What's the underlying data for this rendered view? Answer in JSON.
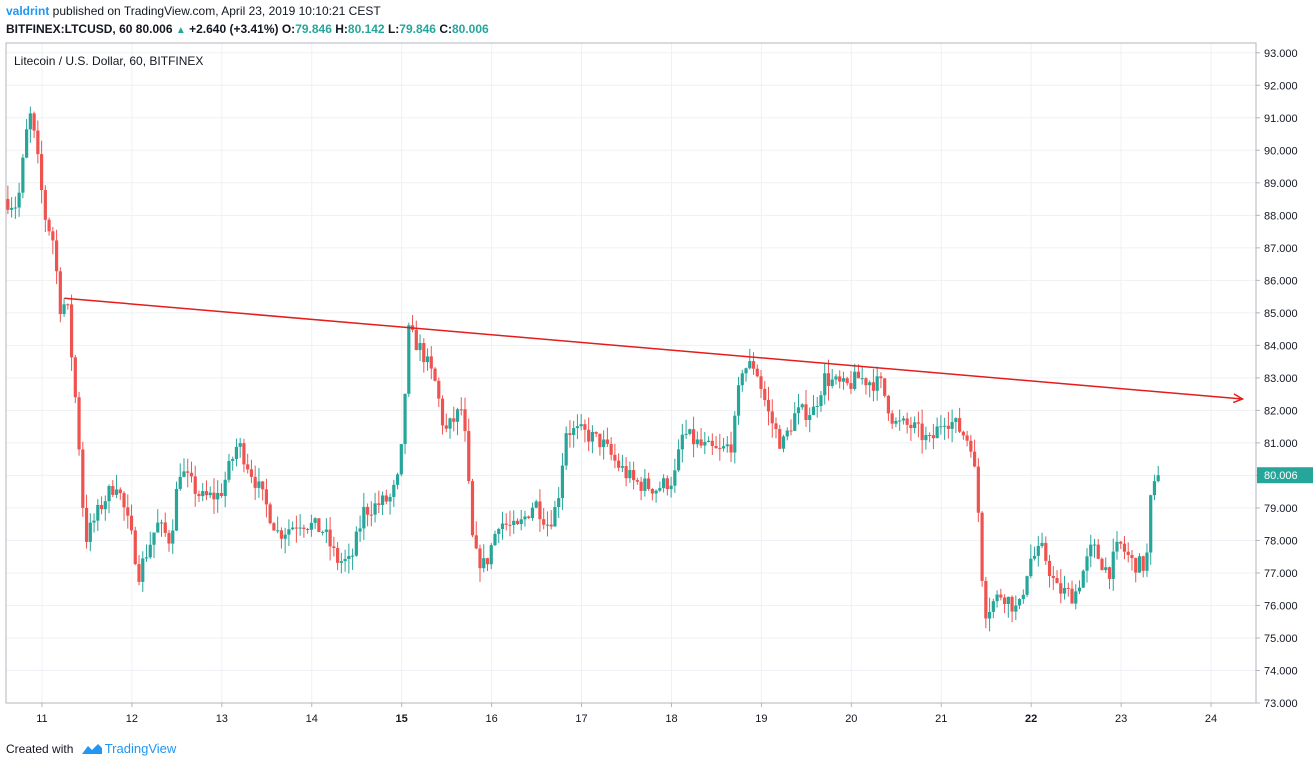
{
  "header": {
    "author": "valdrint",
    "publish_text": " published on TradingView.com, April 23, 2019 10:10:21 CEST",
    "symbol": "BITFINEX:LTCUSD, 60",
    "last": "80.006",
    "change": "+2.640 (+3.41%)",
    "o_label": "O:",
    "o": "79.846",
    "h_label": "H:",
    "h": "80.142",
    "l_label": "L:",
    "l": "79.846",
    "c_label": "C:",
    "c": "80.006"
  },
  "footer": {
    "created_with": "Created with",
    "brand": "TradingView"
  },
  "colors": {
    "up": "#26a69a",
    "down": "#ef5350",
    "trendline": "#e51c1c",
    "grid": "#eef1f5",
    "axis": "#b2b5be",
    "text": "#131722",
    "accent": "#2196f3"
  },
  "chart_data": {
    "type": "candlestick",
    "title": "Litecoin / U.S. Dollar, 60, BITFINEX",
    "x_tick_labels": [
      "11",
      "12",
      "13",
      "14",
      "15",
      "16",
      "17",
      "18",
      "19",
      "20",
      "21",
      "22",
      "23",
      "24"
    ],
    "x_range_days": [
      10.6,
      24.5
    ],
    "y_tick_labels": [
      "73.000",
      "74.000",
      "75.000",
      "76.000",
      "77.000",
      "78.000",
      "79.000",
      "80.000",
      "81.000",
      "82.000",
      "83.000",
      "84.000",
      "85.000",
      "86.000",
      "87.000",
      "88.000",
      "89.000",
      "90.000",
      "91.000",
      "92.000",
      "93.000"
    ],
    "ylim": [
      73,
      93.3
    ],
    "grid": true,
    "last_price": 80.006,
    "last_price_label": "80.006",
    "key_points": [
      {
        "day": 10.6,
        "price": 88.5
      },
      {
        "day": 10.75,
        "price": 88.3
      },
      {
        "day": 10.88,
        "price": 91.2
      },
      {
        "day": 10.95,
        "price": 90.2
      },
      {
        "day": 11.05,
        "price": 88.0
      },
      {
        "day": 11.15,
        "price": 87.2
      },
      {
        "day": 11.22,
        "price": 85.2
      },
      {
        "day": 11.3,
        "price": 85.3
      },
      {
        "day": 11.42,
        "price": 81.5
      },
      {
        "day": 11.5,
        "price": 78.0
      },
      {
        "day": 11.7,
        "price": 79.2
      },
      {
        "day": 11.85,
        "price": 79.8
      },
      {
        "day": 12.0,
        "price": 78.3
      },
      {
        "day": 12.1,
        "price": 77.0
      },
      {
        "day": 12.3,
        "price": 78.5
      },
      {
        "day": 12.45,
        "price": 78.0
      },
      {
        "day": 12.55,
        "price": 80.2
      },
      {
        "day": 12.8,
        "price": 79.3
      },
      {
        "day": 13.0,
        "price": 79.4
      },
      {
        "day": 13.2,
        "price": 81.0
      },
      {
        "day": 13.4,
        "price": 79.8
      },
      {
        "day": 13.65,
        "price": 78.2
      },
      {
        "day": 13.9,
        "price": 78.6
      },
      {
        "day": 14.15,
        "price": 78.3
      },
      {
        "day": 14.3,
        "price": 77.4
      },
      {
        "day": 14.45,
        "price": 77.3
      },
      {
        "day": 14.6,
        "price": 78.9
      },
      {
        "day": 14.9,
        "price": 79.3
      },
      {
        "day": 15.0,
        "price": 80.0
      },
      {
        "day": 15.1,
        "price": 84.4
      },
      {
        "day": 15.25,
        "price": 83.8
      },
      {
        "day": 15.4,
        "price": 82.8
      },
      {
        "day": 15.5,
        "price": 81.3
      },
      {
        "day": 15.7,
        "price": 82.1
      },
      {
        "day": 15.82,
        "price": 77.6
      },
      {
        "day": 15.95,
        "price": 77.2
      },
      {
        "day": 16.1,
        "price": 78.6
      },
      {
        "day": 16.3,
        "price": 78.3
      },
      {
        "day": 16.5,
        "price": 79.2
      },
      {
        "day": 16.65,
        "price": 78.5
      },
      {
        "day": 16.75,
        "price": 79.1
      },
      {
        "day": 16.85,
        "price": 81.4
      },
      {
        "day": 17.05,
        "price": 81.3
      },
      {
        "day": 17.25,
        "price": 81.0
      },
      {
        "day": 17.4,
        "price": 80.4
      },
      {
        "day": 17.6,
        "price": 79.8
      },
      {
        "day": 17.85,
        "price": 79.6
      },
      {
        "day": 18.05,
        "price": 79.9
      },
      {
        "day": 18.15,
        "price": 81.3
      },
      {
        "day": 18.35,
        "price": 80.9
      },
      {
        "day": 18.55,
        "price": 80.7
      },
      {
        "day": 18.7,
        "price": 81.0
      },
      {
        "day": 18.8,
        "price": 83.3
      },
      {
        "day": 18.95,
        "price": 83.4
      },
      {
        "day": 19.1,
        "price": 81.9
      },
      {
        "day": 19.25,
        "price": 80.9
      },
      {
        "day": 19.4,
        "price": 81.9
      },
      {
        "day": 19.6,
        "price": 82.0
      },
      {
        "day": 19.72,
        "price": 83.0
      },
      {
        "day": 19.95,
        "price": 82.7
      },
      {
        "day": 20.1,
        "price": 83.0
      },
      {
        "day": 20.35,
        "price": 82.8
      },
      {
        "day": 20.5,
        "price": 81.6
      },
      {
        "day": 20.7,
        "price": 81.5
      },
      {
        "day": 20.9,
        "price": 81.0
      },
      {
        "day": 21.05,
        "price": 81.8
      },
      {
        "day": 21.2,
        "price": 81.5
      },
      {
        "day": 21.35,
        "price": 81.0
      },
      {
        "day": 21.42,
        "price": 79.5
      },
      {
        "day": 21.5,
        "price": 75.8
      },
      {
        "day": 21.7,
        "price": 76.4
      },
      {
        "day": 21.88,
        "price": 75.8
      },
      {
        "day": 22.0,
        "price": 77.4
      },
      {
        "day": 22.15,
        "price": 77.7
      },
      {
        "day": 22.3,
        "price": 76.5
      },
      {
        "day": 22.5,
        "price": 76.3
      },
      {
        "day": 22.7,
        "price": 77.8
      },
      {
        "day": 22.88,
        "price": 77.0
      },
      {
        "day": 23.0,
        "price": 77.9
      },
      {
        "day": 23.15,
        "price": 77.3
      },
      {
        "day": 23.3,
        "price": 77.2
      },
      {
        "day": 23.35,
        "price": 79.2
      },
      {
        "day": 23.43,
        "price": 80.006
      }
    ],
    "annotations": [
      {
        "type": "trendline",
        "from": {
          "day": 11.25,
          "price": 85.45
        },
        "to": {
          "day": 24.35,
          "price": 82.35
        },
        "arrow": true
      }
    ]
  }
}
